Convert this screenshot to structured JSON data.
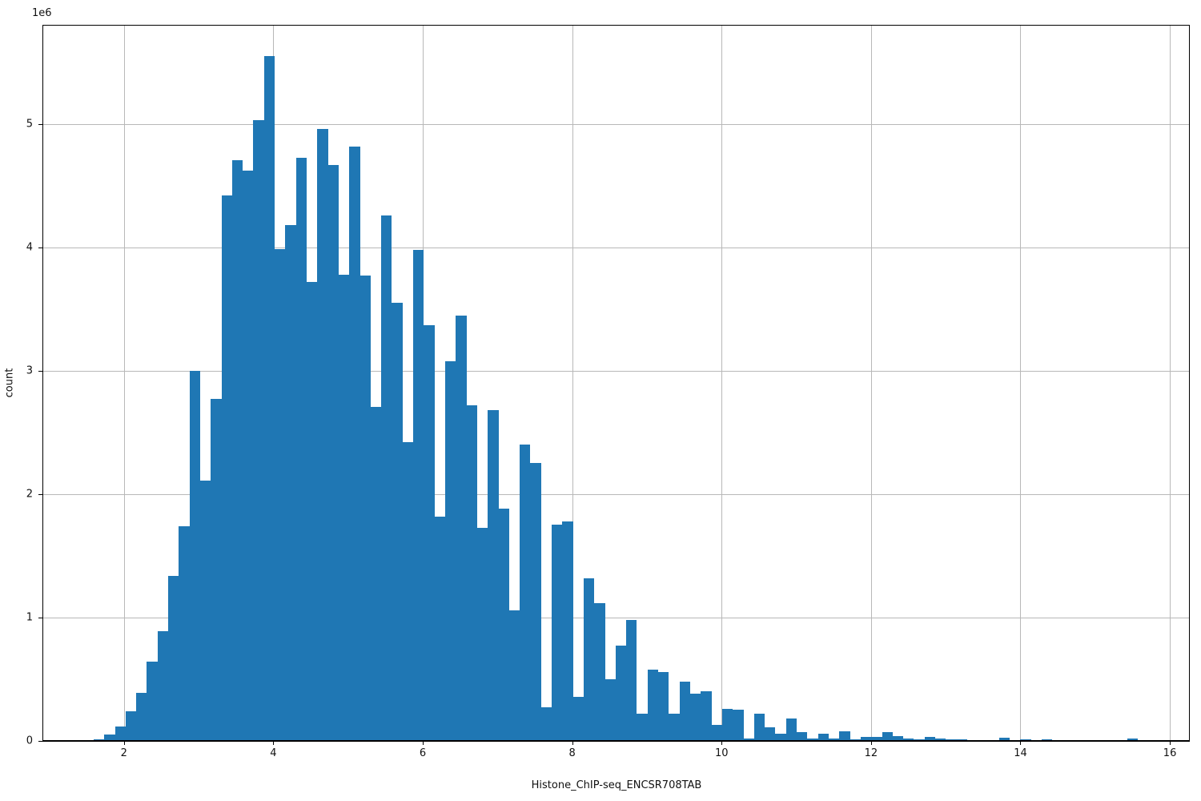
{
  "chart_data": {
    "type": "bar",
    "subtype": "histogram",
    "title": "",
    "xlabel": "Histone_ChIP-seq_ENCSR708TAB",
    "ylabel": "count",
    "y_offset_text": "1e6",
    "x_ticks": [
      2,
      4,
      6,
      8,
      10,
      12,
      14,
      16
    ],
    "y_ticks": [
      0,
      1,
      2,
      3,
      4,
      5
    ],
    "y_tick_scale": 1000000,
    "xlim": [
      0.909,
      16.267
    ],
    "ylim": [
      0,
      5805000
    ],
    "grid": "on",
    "legend": "none",
    "bar_color": "#1f77b4",
    "grid_color": "#b8b8b8",
    "bin_start": 1.594,
    "bin_width": 0.1426,
    "counts_scale": 1000000,
    "counts_1e6": [
      0.013,
      0.052,
      0.12,
      0.24,
      0.39,
      0.645,
      0.89,
      1.34,
      1.74,
      3.0,
      2.11,
      2.77,
      4.42,
      4.71,
      4.62,
      5.03,
      5.55,
      3.99,
      4.18,
      4.73,
      3.72,
      4.96,
      4.67,
      3.78,
      4.82,
      3.77,
      2.71,
      4.26,
      3.55,
      2.42,
      3.98,
      3.37,
      1.82,
      3.08,
      3.45,
      2.72,
      1.73,
      2.68,
      1.88,
      1.06,
      2.4,
      2.25,
      0.27,
      1.75,
      1.78,
      0.36,
      1.32,
      1.12,
      0.5,
      0.77,
      0.98,
      0.22,
      0.58,
      0.56,
      0.22,
      0.48,
      0.38,
      0.4,
      0.13,
      0.26,
      0.25,
      0.02,
      0.22,
      0.11,
      0.06,
      0.18,
      0.07,
      0.02,
      0.06,
      0.02,
      0.08,
      0.01,
      0.03,
      0.03,
      0.07,
      0.04,
      0.02,
      0.01,
      0.03,
      0.02,
      0.01,
      0.015,
      0.005,
      0.005,
      0.005,
      0.025,
      0.005,
      0.015,
      0.005,
      0.015,
      0.003,
      0.003,
      0.003,
      0.003,
      0.003,
      0.003,
      0.003,
      0.02,
      0.002,
      0.002
    ]
  }
}
